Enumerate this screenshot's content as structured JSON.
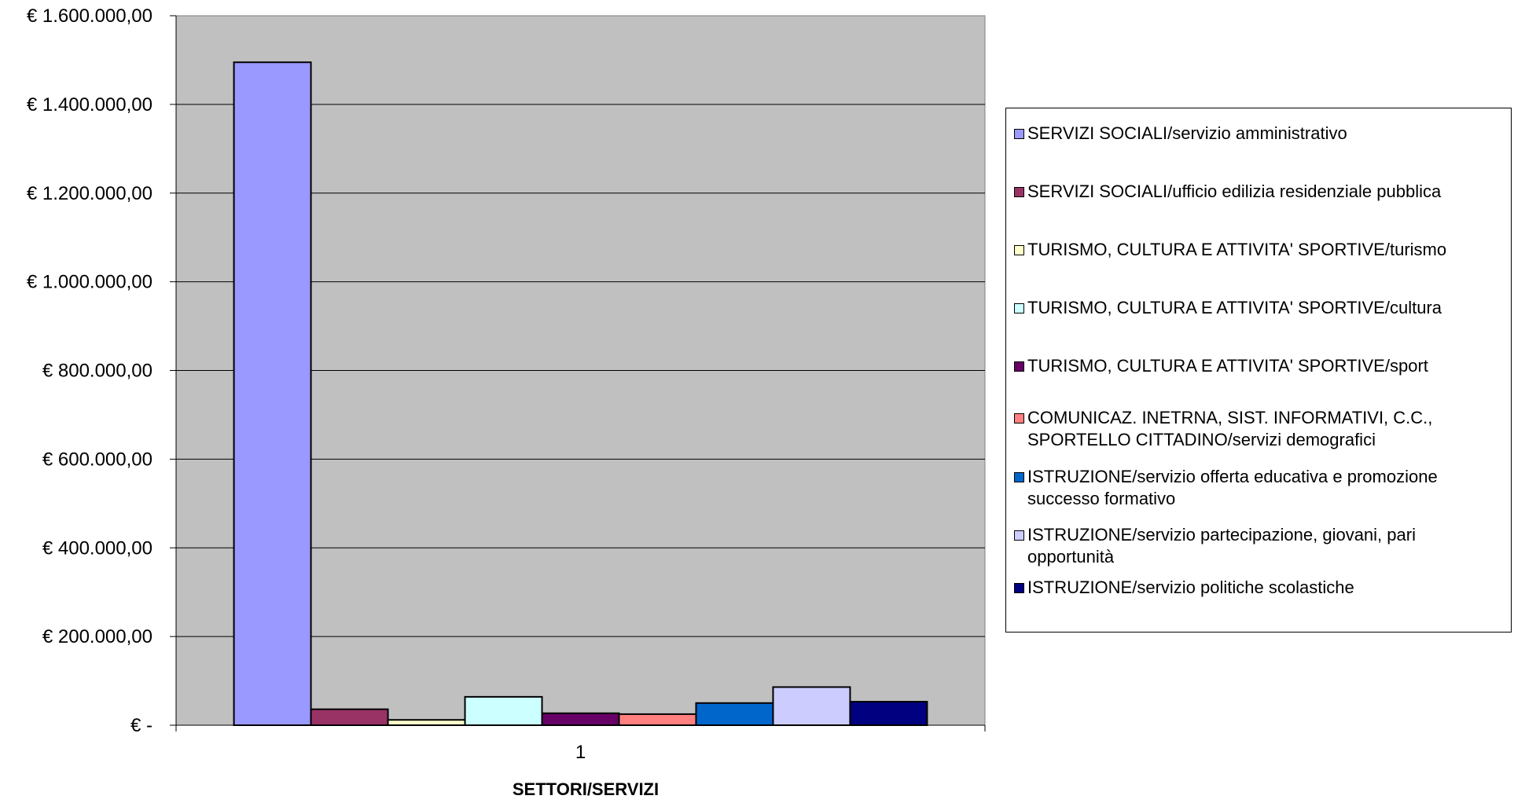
{
  "chart_data": {
    "type": "bar",
    "title": "",
    "xlabel": "SETTORI/SERVIZI",
    "ylabel": "",
    "categories": [
      "1"
    ],
    "ylim": [
      0,
      1600000
    ],
    "yticks": [
      0,
      200000,
      400000,
      600000,
      800000,
      1000000,
      1200000,
      1400000,
      1600000
    ],
    "ytick_labels": [
      "€ -",
      "€ 200.000,00",
      "€ 400.000,00",
      "€ 600.000,00",
      "€ 800.000,00",
      "€ 1.000.000,00",
      "€ 1.200.000,00",
      "€ 1.400.000,00",
      "€ 1.600.000,00"
    ],
    "grid": true,
    "plot_background": "#C0C0C0",
    "legend_position": "right",
    "series": [
      {
        "name": "SERVIZI SOCIALI/servizio amministrativo",
        "values": [
          1495000
        ],
        "color": "#9999FF"
      },
      {
        "name": "SERVIZI SOCIALI/ufficio edilizia residenziale pubblica",
        "values": [
          36000
        ],
        "color": "#993366"
      },
      {
        "name": "TURISMO, CULTURA E ATTIVITA' SPORTIVE/turismo",
        "values": [
          12000
        ],
        "color": "#FFFFCC"
      },
      {
        "name": "TURISMO, CULTURA E ATTIVITA' SPORTIVE/cultura",
        "values": [
          64000
        ],
        "color": "#CCFFFF"
      },
      {
        "name": "TURISMO, CULTURA E ATTIVITA' SPORTIVE/sport",
        "values": [
          27000
        ],
        "color": "#660066"
      },
      {
        "name": "COMUNICAZ. INETRNA, SIST. INFORMATIVI, C.C., SPORTELLO CITTADINO/servizi demografici",
        "values": [
          25000
        ],
        "color": "#FF8080"
      },
      {
        "name": "ISTRUZIONE/servizio offerta educativa e promozione successo formativo",
        "values": [
          50000
        ],
        "color": "#0066CC"
      },
      {
        "name": "ISTRUZIONE/servizio partecipazione, giovani, pari opportunità",
        "values": [
          86000
        ],
        "color": "#CCCCFF"
      },
      {
        "name": "ISTRUZIONE/servizio politiche scolastiche",
        "values": [
          53000
        ],
        "color": "#000080"
      }
    ]
  }
}
